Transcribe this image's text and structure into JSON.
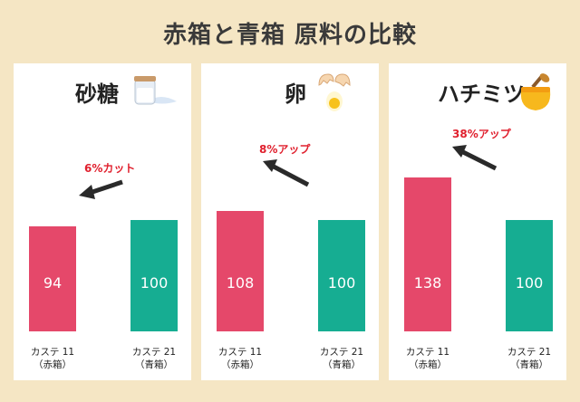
{
  "page": {
    "title": "赤箱と青箱 原料の比較"
  },
  "colors": {
    "red_box": "#e5486a",
    "blue_box": "#16ad92",
    "annotation": "#e0202e",
    "arrow": "#2a2a2a"
  },
  "chart_data": [
    {
      "type": "bar",
      "title": "砂糖",
      "icon": "sugar-jar-icon",
      "categories": [
        {
          "line1": "カステ 11",
          "line2": "（赤箱）"
        },
        {
          "line1": "カステ 21",
          "line2": "（青箱）"
        }
      ],
      "values": [
        94,
        100
      ],
      "annotation": "6%カット"
    },
    {
      "type": "bar",
      "title": "卵",
      "icon": "cracked-egg-icon",
      "categories": [
        {
          "line1": "カステ 11",
          "line2": "（赤箱）"
        },
        {
          "line1": "カステ 21",
          "line2": "（青箱）"
        }
      ],
      "values": [
        108,
        100
      ],
      "annotation": "8%アップ"
    },
    {
      "type": "bar",
      "title": "ハチミツ",
      "icon": "honey-jar-icon",
      "categories": [
        {
          "line1": "カステ 11",
          "line2": "（赤箱）"
        },
        {
          "line1": "カステ 21",
          "line2": "（青箱）"
        }
      ],
      "values": [
        138,
        100
      ],
      "annotation": "38%アップ"
    }
  ]
}
